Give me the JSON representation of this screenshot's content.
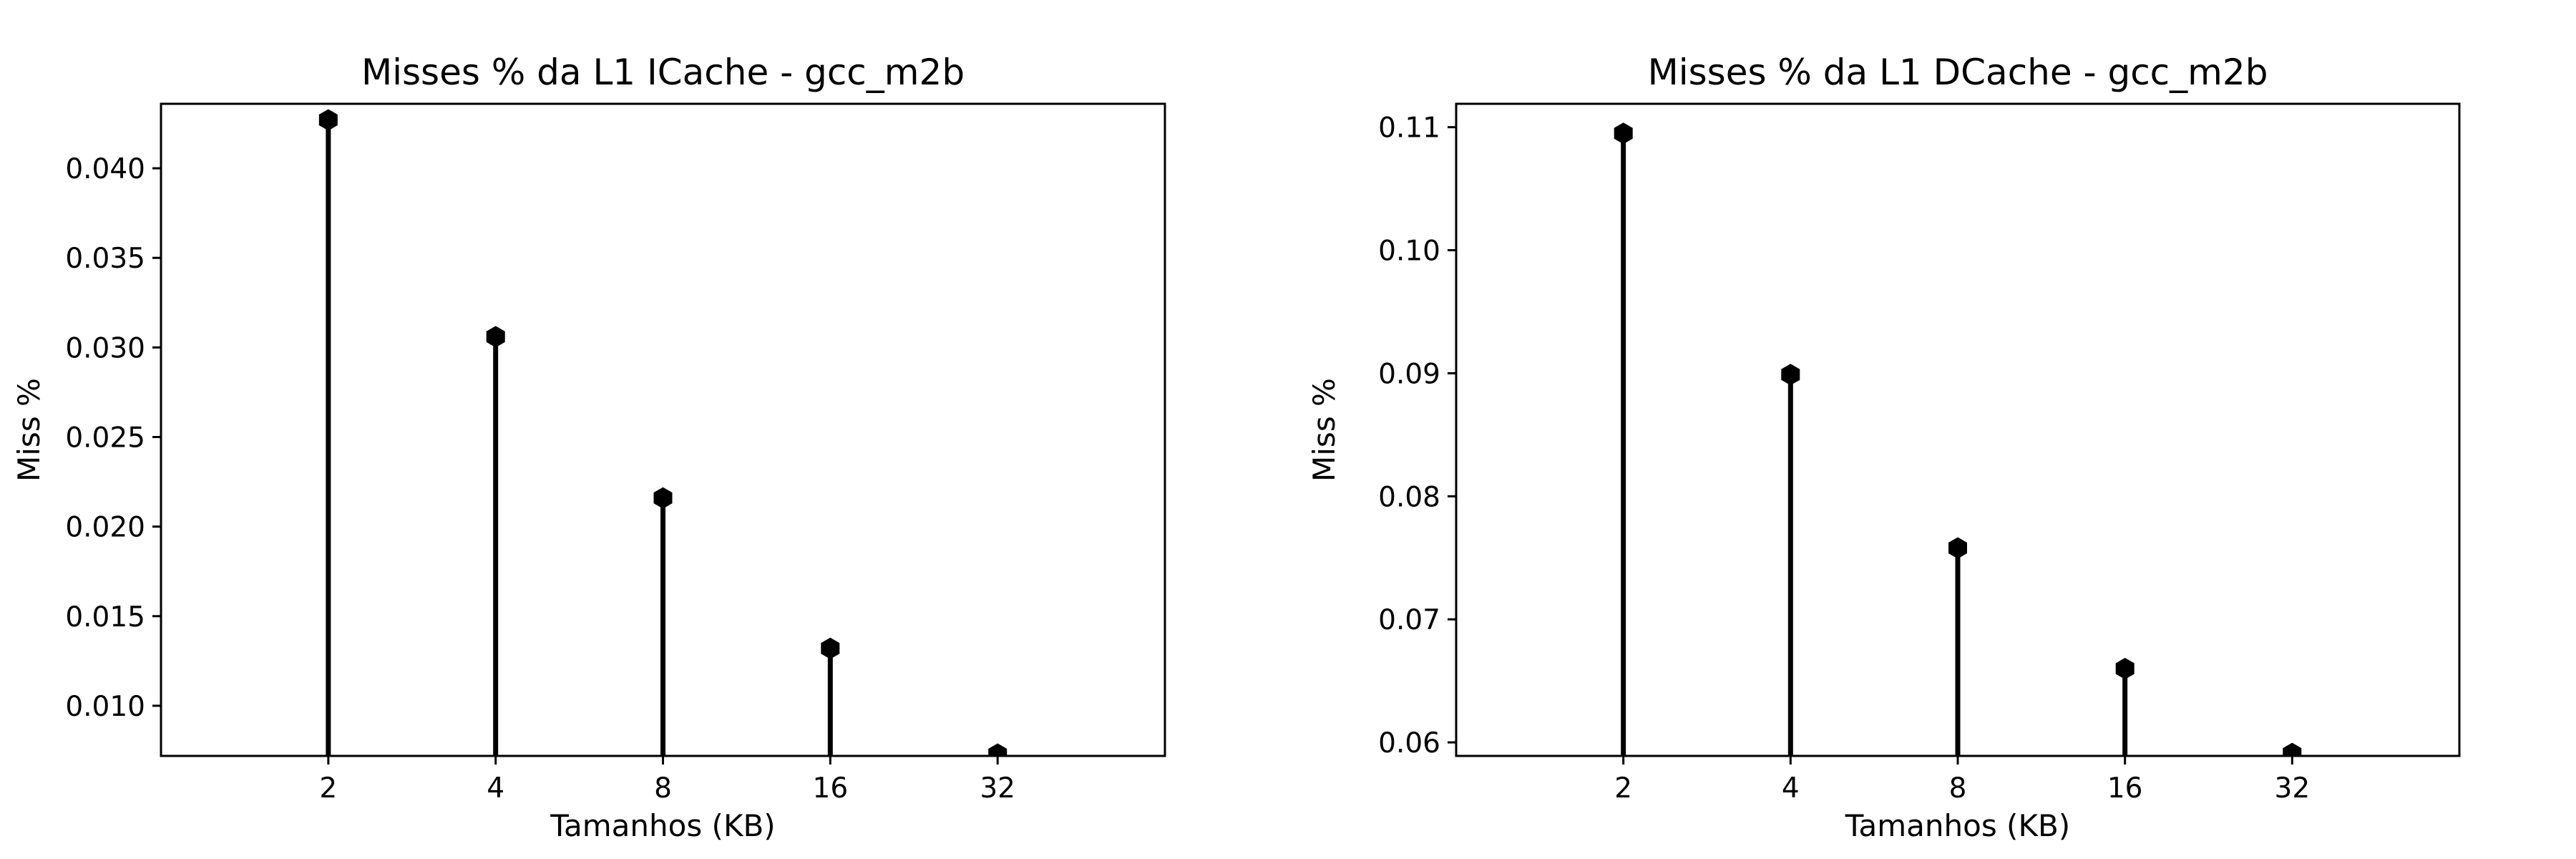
{
  "chart_data": [
    {
      "type": "stem",
      "title": "Misses % da L1 ICache - gcc_m2b",
      "xlabel": "Tamanhos (KB)",
      "ylabel": "Miss %",
      "categories": [
        "2",
        "4",
        "8",
        "16",
        "32"
      ],
      "values": [
        0.0427,
        0.0306,
        0.0216,
        0.0132,
        0.0073
      ],
      "ylim": [
        0.0072,
        0.0436
      ],
      "yticks": [
        0.01,
        0.015,
        0.02,
        0.025,
        0.03,
        0.035,
        0.04
      ],
      "ytick_labels": [
        "0.010",
        "0.015",
        "0.020",
        "0.025",
        "0.030",
        "0.035",
        "0.040"
      ],
      "grid": false,
      "marker": "hexagon",
      "color": "#000000"
    },
    {
      "type": "stem",
      "title": "Misses % da L1 DCache - gcc_m2b",
      "xlabel": "Tamanhos (KB)",
      "ylabel": "Miss %",
      "categories": [
        "2",
        "4",
        "8",
        "16",
        "32"
      ],
      "values": [
        0.1095,
        0.0899,
        0.0758,
        0.066,
        0.0591
      ],
      "ylim": [
        0.0589,
        0.1119
      ],
      "yticks": [
        0.06,
        0.07,
        0.08,
        0.09,
        0.1,
        0.11
      ],
      "ytick_labels": [
        "0.06",
        "0.07",
        "0.08",
        "0.09",
        "0.10",
        "0.11"
      ],
      "grid": false,
      "marker": "hexagon",
      "color": "#000000"
    }
  ]
}
